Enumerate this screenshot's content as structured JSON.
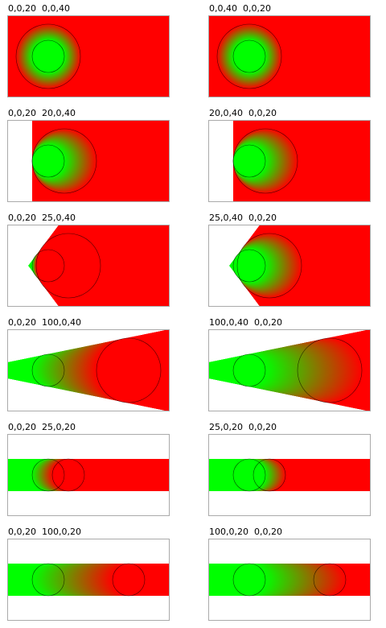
{
  "cells": [
    {
      "label": "0,0,20  0,0,40",
      "stops": [
        "#00ff00",
        "#ff0000"
      ]
    },
    {
      "label": "0,0,40  0,0,20",
      "stops": [
        "#ff0000",
        "#00ff00"
      ]
    },
    {
      "label": "0,0,20  20,0,40",
      "stops": [
        "#00ff00",
        "#ff0000"
      ]
    },
    {
      "label": "20,0,40  0,0,20",
      "stops": [
        "#ff0000",
        "#00ff00"
      ]
    },
    {
      "label": "0,0,20  25,0,40",
      "stops": [
        "#00ff00",
        "#ff0000"
      ]
    },
    {
      "label": "25,0,40  0,0,20",
      "stops": [
        "#ff0000",
        "#00ff00"
      ]
    },
    {
      "label": "0,0,20  100,0,40",
      "stops": [
        "#00ff00",
        "#ff0000"
      ]
    },
    {
      "label": "100,0,40  0,0,20",
      "stops": [
        "#ff0000",
        "#00ff00"
      ]
    },
    {
      "label": "0,0,20  25,0,20",
      "stops": [
        "#00ff00",
        "#ff0000"
      ]
    },
    {
      "label": "25,0,20  0,0,20",
      "stops": [
        "#ff0000",
        "#00ff00"
      ]
    },
    {
      "label": "0,0,20  100,0,20",
      "stops": [
        "#00ff00",
        "#ff0000"
      ]
    },
    {
      "label": "100,0,20  0,0,20",
      "stops": [
        "#ff0000",
        "#00ff00"
      ]
    }
  ]
}
